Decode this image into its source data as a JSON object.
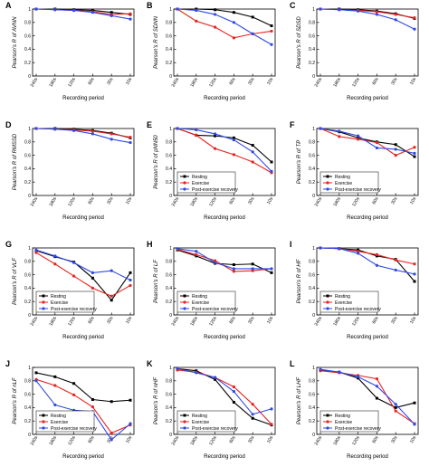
{
  "colors": {
    "resting": "#000000",
    "exercise": "#e8231f",
    "recovery": "#2f49e6"
  },
  "series_names": [
    "Resting",
    "Exercise",
    "Post-exercise recovery"
  ],
  "categories": [
    "240s",
    "180s",
    "120s",
    "60s",
    "30s",
    "10s"
  ],
  "xlabel": "Recording period",
  "ylim": [
    0,
    1
  ],
  "yticks": [
    "0",
    "0.2",
    "0.4",
    "0.6",
    "0.8",
    "1"
  ],
  "grid": false,
  "legend": "bottom-left",
  "chart_data": [
    {
      "type": "line",
      "panel": "A",
      "ylabel": "Pearson's R of AVNN",
      "categories": [
        "240s",
        "180s",
        "120s",
        "60s",
        "30s",
        "10s"
      ],
      "xlabel": "Recording period",
      "ylim": [
        0,
        1
      ],
      "legend": "none",
      "series": [
        {
          "name": "Resting",
          "values": [
            1.0,
            1.0,
            0.99,
            0.98,
            0.95,
            0.92
          ]
        },
        {
          "name": "Exercise",
          "values": [
            1.0,
            0.99,
            0.98,
            0.96,
            0.92,
            0.93
          ]
        },
        {
          "name": "Post-exercise recovery",
          "values": [
            1.0,
            0.99,
            0.98,
            0.95,
            0.9,
            0.85
          ]
        }
      ]
    },
    {
      "type": "line",
      "panel": "B",
      "ylabel": "Pearson's R of SDNN",
      "categories": [
        "240s",
        "180s",
        "120s",
        "60s",
        "30s",
        "10s"
      ],
      "xlabel": "Recording period",
      "ylim": [
        0,
        1
      ],
      "legend": "none",
      "series": [
        {
          "name": "Resting",
          "values": [
            1.0,
            1.0,
            0.99,
            0.95,
            0.88,
            0.75
          ]
        },
        {
          "name": "Exercise",
          "values": [
            1.0,
            0.82,
            0.73,
            0.57,
            0.63,
            0.67
          ]
        },
        {
          "name": "Post-exercise recovery",
          "values": [
            1.0,
            0.98,
            0.92,
            0.8,
            0.63,
            0.47
          ]
        }
      ]
    },
    {
      "type": "line",
      "panel": "C",
      "ylabel": "Pearson's R of SDSD",
      "categories": [
        "240s",
        "180s",
        "120s",
        "60s",
        "30s",
        "10s"
      ],
      "xlabel": "Recording period",
      "ylim": [
        0,
        1
      ],
      "legend": "none",
      "series": [
        {
          "name": "Resting",
          "values": [
            1.0,
            1.0,
            0.99,
            0.97,
            0.93,
            0.86
          ]
        },
        {
          "name": "Exercise",
          "values": [
            1.0,
            0.99,
            0.98,
            0.96,
            0.92,
            0.87
          ]
        },
        {
          "name": "Post-exercise recovery",
          "values": [
            1.0,
            0.99,
            0.97,
            0.92,
            0.84,
            0.7
          ]
        }
      ]
    },
    {
      "type": "line",
      "panel": "D",
      "ylabel": "Pearson's R of RMSSD",
      "categories": [
        "240s",
        "180s",
        "120s",
        "60s",
        "30s",
        "10s"
      ],
      "xlabel": "Recording period",
      "ylim": [
        0,
        1
      ],
      "legend": "none",
      "series": [
        {
          "name": "Resting",
          "values": [
            1.0,
            1.0,
            0.99,
            0.97,
            0.93,
            0.86
          ]
        },
        {
          "name": "Exercise",
          "values": [
            1.0,
            0.99,
            0.98,
            0.96,
            0.92,
            0.87
          ]
        },
        {
          "name": "Post-exercise recovery",
          "values": [
            1.0,
            0.99,
            0.97,
            0.92,
            0.84,
            0.79
          ]
        }
      ]
    },
    {
      "type": "line",
      "panel": "E",
      "ylabel": "Pearson's R of pNN50",
      "categories": [
        "240s",
        "180s",
        "120s",
        "60s",
        "30s",
        "10s"
      ],
      "xlabel": "Recording period",
      "ylim": [
        0,
        1
      ],
      "legend": "bottom-left",
      "series": [
        {
          "name": "Resting",
          "values": [
            1.0,
            0.9,
            0.89,
            0.86,
            0.75,
            0.5
          ]
        },
        {
          "name": "Exercise",
          "values": [
            1.0,
            0.9,
            0.7,
            0.61,
            0.5,
            0.34
          ]
        },
        {
          "name": "Post-exercise recovery",
          "values": [
            1.0,
            0.98,
            0.92,
            0.83,
            0.65,
            0.36
          ]
        }
      ]
    },
    {
      "type": "line",
      "panel": "F",
      "ylabel": "Pearson's R of TP",
      "categories": [
        "240s",
        "180s",
        "120s",
        "60s",
        "30s",
        "10s"
      ],
      "xlabel": "Recording period",
      "ylim": [
        0,
        1
      ],
      "legend": "bottom-left",
      "series": [
        {
          "name": "Resting",
          "values": [
            1.0,
            0.95,
            0.86,
            0.8,
            0.76,
            0.58
          ]
        },
        {
          "name": "Exercise",
          "values": [
            1.0,
            0.88,
            0.84,
            0.79,
            0.6,
            0.72
          ]
        },
        {
          "name": "Post-exercise recovery",
          "values": [
            1.0,
            0.96,
            0.89,
            0.71,
            0.69,
            0.63
          ]
        }
      ]
    },
    {
      "type": "line",
      "panel": "G",
      "ylabel": "Pearson's R of VLF",
      "categories": [
        "240s",
        "180s",
        "120s",
        "60s",
        "30s",
        "10s"
      ],
      "xlabel": "Recording period",
      "ylim": [
        0,
        1
      ],
      "legend": "bottom-left",
      "series": [
        {
          "name": "Resting",
          "values": [
            0.96,
            0.87,
            0.79,
            0.55,
            0.22,
            0.63
          ]
        },
        {
          "name": "Exercise",
          "values": [
            0.93,
            0.76,
            0.58,
            0.4,
            0.28,
            0.44
          ]
        },
        {
          "name": "Post-exercise recovery",
          "values": [
            0.97,
            0.88,
            0.78,
            0.63,
            0.66,
            0.52
          ]
        }
      ]
    },
    {
      "type": "line",
      "panel": "H",
      "ylabel": "Pearson's R of LF",
      "categories": [
        "240s",
        "180s",
        "120s",
        "60s",
        "30s",
        "10s"
      ],
      "xlabel": "Recording period",
      "ylim": [
        0,
        1
      ],
      "legend": "bottom-left",
      "series": [
        {
          "name": "Resting",
          "values": [
            0.97,
            0.88,
            0.77,
            0.75,
            0.76,
            0.63
          ]
        },
        {
          "name": "Exercise",
          "values": [
            0.98,
            0.9,
            0.81,
            0.65,
            0.66,
            0.69
          ]
        },
        {
          "name": "Post-exercise recovery",
          "values": [
            0.99,
            0.95,
            0.78,
            0.69,
            0.69,
            0.69
          ]
        }
      ]
    },
    {
      "type": "line",
      "panel": "I",
      "ylabel": "Pearson's R of HF",
      "categories": [
        "240s",
        "180s",
        "120s",
        "60s",
        "30s",
        "10s"
      ],
      "xlabel": "Recording period",
      "ylim": [
        0,
        1
      ],
      "legend": "bottom-left",
      "series": [
        {
          "name": "Resting",
          "values": [
            1.0,
            0.99,
            0.97,
            0.88,
            0.83,
            0.5
          ]
        },
        {
          "name": "Exercise",
          "values": [
            1.0,
            0.99,
            0.95,
            0.9,
            0.82,
            0.76
          ]
        },
        {
          "name": "Post-exercise recovery",
          "values": [
            1.0,
            0.99,
            0.92,
            0.74,
            0.67,
            0.61
          ]
        }
      ]
    },
    {
      "type": "line",
      "panel": "J",
      "ylabel": "Pearson's R of nLF",
      "categories": [
        "240s",
        "180s",
        "120s",
        "60s",
        "30s",
        "10s"
      ],
      "xlabel": "Recording period",
      "ylim": [
        0,
        1
      ],
      "legend": "bottom-left",
      "series": [
        {
          "name": "Resting",
          "values": [
            0.92,
            0.86,
            0.76,
            0.52,
            0.49,
            0.51
          ]
        },
        {
          "name": "Exercise",
          "values": [
            0.82,
            0.73,
            0.59,
            0.41,
            0.02,
            0.14
          ]
        },
        {
          "name": "Post-exercise recovery",
          "values": [
            0.8,
            0.44,
            0.36,
            0.34,
            -0.08,
            0.16
          ]
        }
      ]
    },
    {
      "type": "line",
      "panel": "K",
      "ylabel": "Pearson's R of nHF",
      "categories": [
        "240s",
        "180s",
        "120s",
        "60s",
        "30s",
        "10s"
      ],
      "xlabel": "Recording period",
      "ylim": [
        0,
        1
      ],
      "legend": "bottom-left",
      "series": [
        {
          "name": "Resting",
          "values": [
            0.98,
            0.95,
            0.82,
            0.48,
            0.24,
            0.14
          ]
        },
        {
          "name": "Exercise",
          "values": [
            0.96,
            0.93,
            0.85,
            0.71,
            0.45,
            0.15
          ]
        },
        {
          "name": "Post-exercise recovery",
          "values": [
            0.98,
            0.92,
            0.85,
            0.64,
            0.3,
            0.38
          ]
        }
      ]
    },
    {
      "type": "line",
      "panel": "L",
      "ylabel": "Pearson's R of LHF",
      "categories": [
        "240s",
        "180s",
        "120s",
        "60s",
        "30s",
        "10s"
      ],
      "xlabel": "Recording period",
      "ylim": [
        0,
        1
      ],
      "legend": "bottom-left",
      "series": [
        {
          "name": "Resting",
          "values": [
            0.96,
            0.93,
            0.84,
            0.54,
            0.4,
            0.47
          ]
        },
        {
          "name": "Exercise",
          "values": [
            0.95,
            0.92,
            0.88,
            0.83,
            0.35,
            0.16
          ]
        },
        {
          "name": "Post-exercise recovery",
          "values": [
            0.97,
            0.93,
            0.86,
            0.72,
            0.45,
            0.15
          ]
        }
      ]
    }
  ]
}
